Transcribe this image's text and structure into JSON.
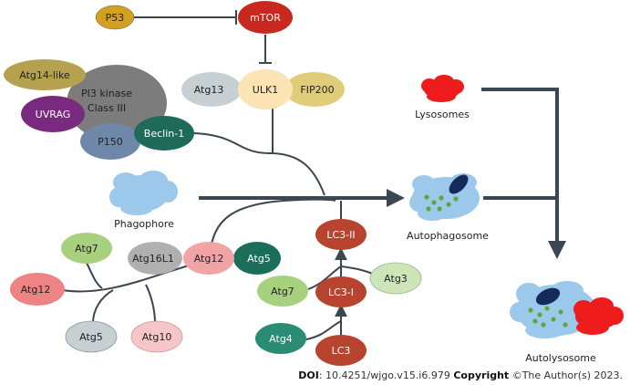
{
  "nodes": {
    "p53": "P53",
    "mtor": "mTOR",
    "atg14like": "Atg14-like",
    "pi3k": [
      "PI3 kinase",
      "Class III"
    ],
    "uvrag": "UVRAG",
    "p150": "P150",
    "beclin1": "Beclin-1",
    "atg13": "Atg13",
    "ulk1": "ULK1",
    "fip200": "FIP200",
    "phagophore": "Phagophore",
    "lysosomes": "Lysosomes",
    "autophagosome": "Autophagosome",
    "autolysosome": "Autolysosome",
    "lc3ii": "LC3-II",
    "lc3i": "LC3-I",
    "lc3": "LC3",
    "atg3": "Atg3",
    "atg4": "Atg4",
    "atg7_right": "Atg7",
    "atg7_left": "Atg7",
    "atg16l1": "Atg16L1",
    "atg12_complex": "Atg12",
    "atg5_complex": "Atg5",
    "atg12_left": "Atg12",
    "atg5_bottom": "Atg5",
    "atg10": "Atg10"
  },
  "footer": {
    "doi_label": "DOI",
    "doi_value": ": 10.4251/wjgo.v15.i6.979",
    "copyright_label": "Copyright",
    "copyright_value": " ©The Author(s) 2023."
  },
  "colors": {
    "p53": "#d4a020",
    "mtor": "#c8281e",
    "atg14like": "#b6a14e",
    "pi3k": "#7c7c7c",
    "uvrag": "#7a2a7e",
    "p150": "#6f87a8",
    "beclin1": "#1f6b5a",
    "atg13": "#c6d0d2",
    "ulk1": "#fde4b4",
    "fip200": "#e0cd7a",
    "cloud": "#9cc8ec",
    "lysosome": "#ee1c1c",
    "lc3": "#b8432f",
    "atg3": "#cde5b9",
    "atg7": "#a7d07f",
    "atg4": "#2a8c74",
    "atg16l1": "#b0b0b0",
    "atg12": "#f1a3a5",
    "atg5dark": "#1b6e5a",
    "atg12left": "#ee8383",
    "atg5grey": "#c6d0d2",
    "atg10": "#f6c6c8",
    "line": "#3a4650"
  }
}
